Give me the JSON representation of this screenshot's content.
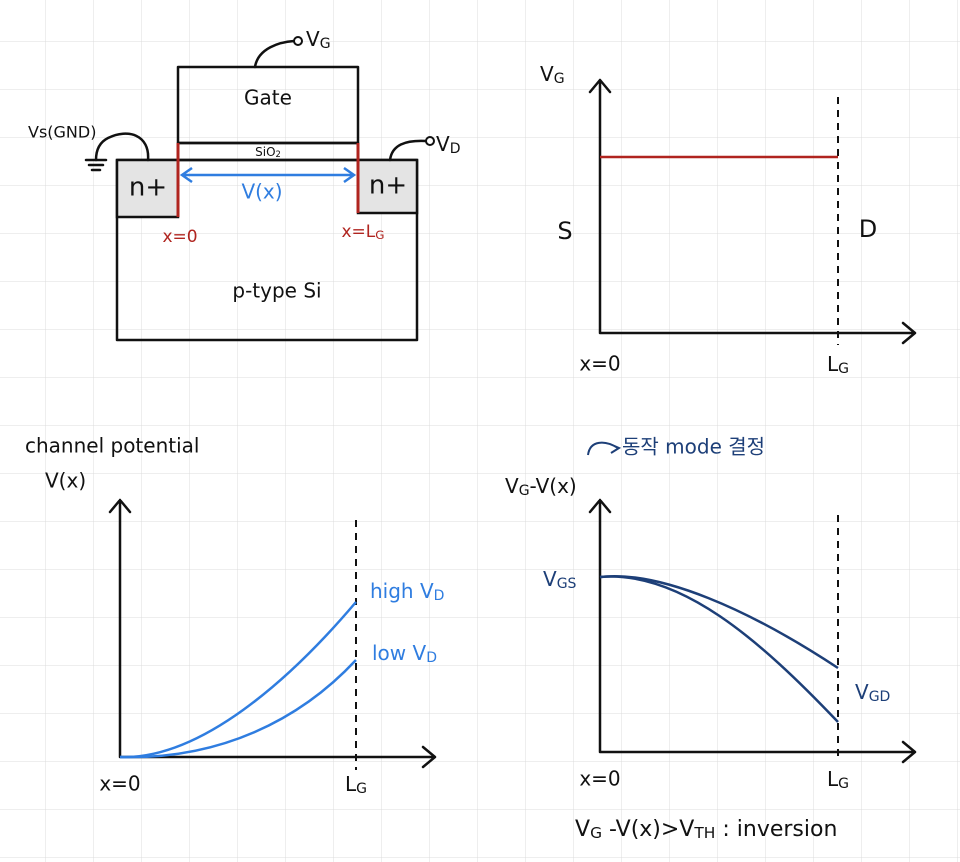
{
  "device": {
    "gate_terminal": [
      {
        "text": "V"
      },
      {
        "text": "G",
        "sub": true
      }
    ],
    "gate": "Gate",
    "source_terminal": "Vs(GND)",
    "oxide": [
      {
        "text": "SiO"
      },
      {
        "text": "2",
        "sub": true
      }
    ],
    "drain_terminal": [
      {
        "text": "V"
      },
      {
        "text": "D",
        "sub": true
      }
    ],
    "source": "n+",
    "drain": "n+",
    "channel": "V(x)",
    "source_edge": "x=0",
    "drain_edge": [
      {
        "text": "x=L"
      },
      {
        "text": "G",
        "sub": true
      }
    ],
    "substrate": "p-type Si"
  },
  "gate_plot": {
    "y_label": [
      {
        "text": "V"
      },
      {
        "text": "G",
        "sub": true
      }
    ],
    "source": "S",
    "drain": "D",
    "x_start": "x=0",
    "x_end": [
      {
        "text": "L"
      },
      {
        "text": "G",
        "sub": true
      }
    ]
  },
  "potential_plot": {
    "title": "channel potential",
    "y_label": "V(x)",
    "high": [
      {
        "text": "high V"
      },
      {
        "text": "D",
        "sub": true
      }
    ],
    "low": [
      {
        "text": "low V"
      },
      {
        "text": "D",
        "sub": true
      }
    ],
    "x_start": "x=0",
    "x_end": [
      {
        "text": "L"
      },
      {
        "text": "G",
        "sub": true
      }
    ]
  },
  "overdrive_plot": {
    "annotation": "동작 mode 결정",
    "y_label": [
      {
        "text": "V"
      },
      {
        "text": "G",
        "sub": true
      },
      {
        "text": "-V(x)"
      }
    ],
    "start": [
      {
        "text": "V"
      },
      {
        "text": "GS",
        "sub": true
      }
    ],
    "end": [
      {
        "text": "V"
      },
      {
        "text": "GD",
        "sub": true
      }
    ],
    "x_start": "x=0",
    "x_end": [
      {
        "text": "L"
      },
      {
        "text": "G",
        "sub": true
      }
    ],
    "condition": [
      {
        "text": "V"
      },
      {
        "text": "G",
        "sub": true
      },
      {
        "text": " -V(x)>V"
      },
      {
        "text": "TH",
        "sub": true
      },
      {
        "text": " : inversion"
      }
    ]
  }
}
